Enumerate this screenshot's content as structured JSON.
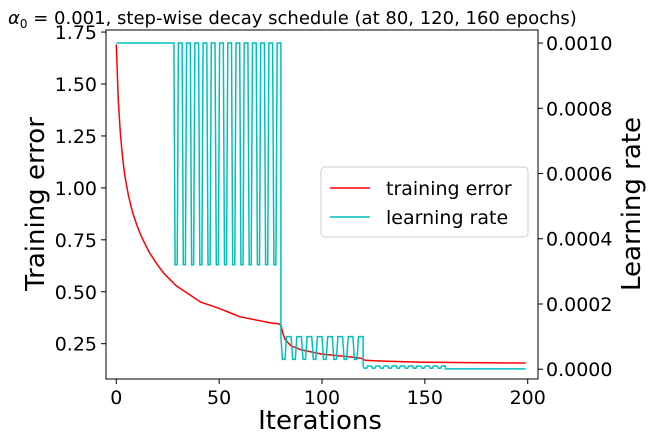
{
  "chart_data": {
    "type": "line",
    "title_prefix": "α",
    "title_sub": "0",
    "title_rest": " = 0.001, step-wise decay schedule (at 80, 120, 160 epochs)",
    "xlabel": "Iterations",
    "ylabel_left": "Training error",
    "ylabel_right": "Learning rate",
    "xlim": [
      -5,
      205
    ],
    "ylim_left": [
      0.08,
      1.76
    ],
    "ylim_right": [
      -3e-05,
      0.00104
    ],
    "x_ticks": [
      0,
      50,
      100,
      150,
      200
    ],
    "x_tick_labels": [
      "0",
      "50",
      "100",
      "150",
      "200"
    ],
    "y_left_ticks": [
      0.25,
      0.5,
      0.75,
      1.0,
      1.25,
      1.5,
      1.75
    ],
    "y_left_tick_labels": [
      "0.25",
      "0.50",
      "0.75",
      "1.00",
      "1.25",
      "1.50",
      "1.75"
    ],
    "y_right_ticks": [
      0.0,
      0.0002,
      0.0004,
      0.0006,
      0.0008,
      0.001
    ],
    "y_right_tick_labels": [
      "0.0000",
      "0.0002",
      "0.0004",
      "0.0006",
      "0.0008",
      "0.0010"
    ],
    "legend_position": "center-right",
    "series": [
      {
        "name": "training error",
        "axis": "left",
        "color": "#ff0000",
        "x": [
          0,
          1,
          2,
          3,
          4,
          5,
          6,
          8,
          10,
          12,
          14,
          16,
          18,
          20,
          23,
          26,
          29,
          32,
          35,
          38,
          41,
          44,
          47,
          50,
          55,
          60,
          65,
          70,
          75,
          79,
          80,
          81,
          82,
          85,
          90,
          95,
          100,
          105,
          110,
          115,
          119,
          120,
          121,
          125,
          130,
          140,
          150,
          160,
          170,
          180,
          190,
          199
        ],
        "y": [
          1.69,
          1.42,
          1.26,
          1.15,
          1.07,
          1.01,
          0.96,
          0.88,
          0.82,
          0.77,
          0.73,
          0.69,
          0.66,
          0.63,
          0.59,
          0.56,
          0.53,
          0.51,
          0.49,
          0.47,
          0.45,
          0.44,
          0.43,
          0.42,
          0.4,
          0.38,
          0.37,
          0.36,
          0.35,
          0.345,
          0.34,
          0.3,
          0.27,
          0.24,
          0.22,
          0.21,
          0.2,
          0.195,
          0.19,
          0.185,
          0.18,
          0.175,
          0.17,
          0.168,
          0.166,
          0.163,
          0.161,
          0.16,
          0.159,
          0.158,
          0.157,
          0.157
        ]
      },
      {
        "name": "learning rate",
        "axis": "right",
        "color": "#00bfbf",
        "segments": [
          {
            "x_start": 0,
            "x_end": 28,
            "base": 0.001,
            "osc_low": null,
            "steps": 0
          },
          {
            "x_start": 28,
            "x_end": 80,
            "base": 0.001,
            "osc_low": 0.00032,
            "steps": 13
          },
          {
            "x_start": 80,
            "x_end": 120,
            "base": 0.0001,
            "osc_low": 3e-05,
            "steps": 8
          },
          {
            "x_start": 120,
            "x_end": 160,
            "base": 1e-05,
            "osc_low": 3e-06,
            "steps": 10
          },
          {
            "x_start": 160,
            "x_end": 199,
            "base": 1e-06,
            "osc_low": null,
            "steps": 0
          }
        ]
      }
    ]
  }
}
